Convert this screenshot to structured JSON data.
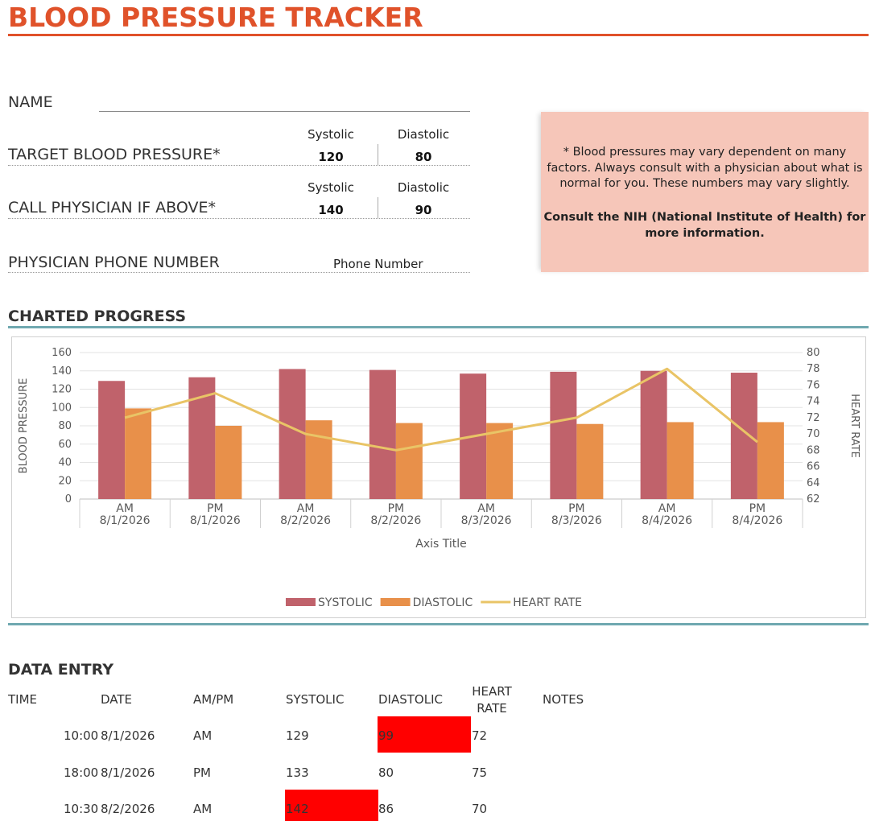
{
  "title": "BLOOD PRESSURE TRACKER",
  "form": {
    "name_label": "NAME",
    "target_label": "TARGET BLOOD PRESSURE*",
    "call_label": "CALL PHYSICIAN IF ABOVE*",
    "phone_label": "PHYSICIAN PHONE NUMBER",
    "systolic_header": "Systolic",
    "diastolic_header": "Diastolic",
    "target_systolic": "120",
    "target_diastolic": "80",
    "call_systolic": "140",
    "call_diastolic": "90",
    "phone_value": "Phone Number"
  },
  "note": {
    "text": "* Blood pressures may vary dependent on many factors.  Always consult with a physician about what is normal for you. These numbers may vary slightly.",
    "bold": "Consult the NIH (National Institute of Health) for more information."
  },
  "charted_progress_heading": "CHARTED PROGRESS",
  "data_entry_heading": "DATA ENTRY",
  "chart_data": {
    "type": "bar",
    "categories": [
      [
        "AM",
        "8/1/2026"
      ],
      [
        "PM",
        "8/1/2026"
      ],
      [
        "AM",
        "8/2/2026"
      ],
      [
        "PM",
        "8/2/2026"
      ],
      [
        "AM",
        "8/3/2026"
      ],
      [
        "PM",
        "8/3/2026"
      ],
      [
        "AM",
        "8/4/2026"
      ],
      [
        "PM",
        "8/4/2026"
      ]
    ],
    "series": [
      {
        "name": "SYSTOLIC",
        "type": "bar",
        "axis": "left",
        "color": "#c0626b",
        "values": [
          129,
          133,
          142,
          141,
          137,
          139,
          140,
          138
        ]
      },
      {
        "name": "DIASTOLIC",
        "type": "bar",
        "axis": "left",
        "color": "#e8904a",
        "values": [
          99,
          80,
          86,
          83,
          83,
          82,
          84,
          84
        ]
      },
      {
        "name": "HEART RATE",
        "type": "line",
        "axis": "right",
        "color": "#e9c466",
        "values": [
          72,
          75,
          70,
          68,
          70,
          72,
          78,
          69
        ]
      }
    ],
    "xlabel": "Axis Title",
    "ylabel": "BLOOD PRESSURE",
    "y2label": "HEART RATE",
    "ylim": [
      0,
      160
    ],
    "y2lim": [
      62,
      80
    ],
    "yticks": [
      "0",
      "20",
      "40",
      "60",
      "80",
      "100",
      "120",
      "140",
      "160"
    ],
    "y2ticks": [
      "62",
      "64",
      "66",
      "68",
      "70",
      "72",
      "74",
      "76",
      "78",
      "80"
    ],
    "grid": true,
    "legend": "bottom"
  },
  "table": {
    "headers": [
      "TIME",
      "DATE",
      "AM/PM",
      "SYSTOLIC",
      "DIASTOLIC",
      "HEART RATE",
      "NOTES"
    ],
    "header_heart_line1": "HEART",
    "header_heart_line2": "RATE",
    "rows": [
      {
        "time": "10:00",
        "date": "8/1/2026",
        "ampm": "AM",
        "systolic": "129",
        "diastolic": "99",
        "heart": "72"
      },
      {
        "time": "18:00",
        "date": "8/1/2026",
        "ampm": "PM",
        "systolic": "133",
        "diastolic": "80",
        "heart": "75"
      },
      {
        "time": "10:30",
        "date": "8/2/2026",
        "ampm": "AM",
        "systolic": "142",
        "diastolic": "86",
        "heart": "70"
      }
    ],
    "highlight_color": "#ff0000"
  }
}
